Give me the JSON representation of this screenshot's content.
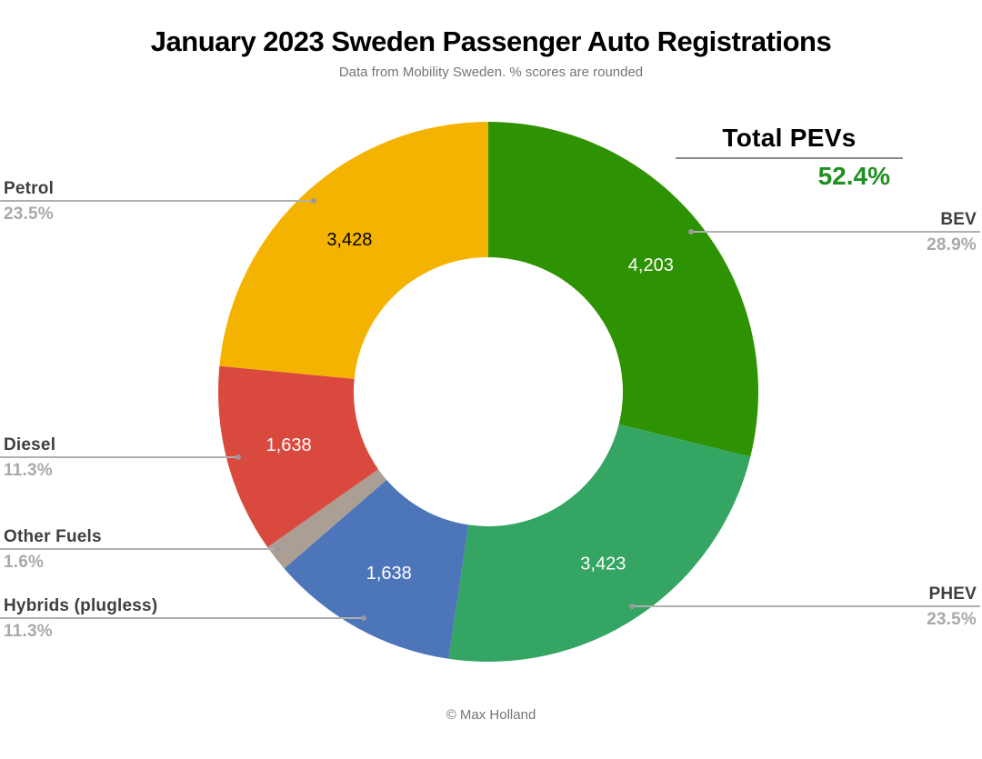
{
  "header": {
    "title": "January 2023 Sweden Passenger Auto Registrations",
    "subtitle": "Data from Mobility Sweden. % scores are rounded"
  },
  "footer": {
    "credit": "© Max Holland"
  },
  "colors": {
    "accent_green": "#1f8f1f",
    "label_dark": "#3f3f3f",
    "label_gray": "#a9a9a9",
    "leader_line": "#b0b0b0"
  },
  "chart_data": {
    "type": "pie",
    "donut": true,
    "title": "January 2023 Sweden Passenger Auto Registrations",
    "subtitle": "Data from Mobility Sweden. % scores are rounded",
    "credit": "© Max Holland",
    "start_angle": "12-oclock",
    "direction": "clockwise",
    "legend_position": "outside-callouts",
    "annotation": {
      "label": "Total PEVs",
      "value": "52.4%"
    },
    "segments": [
      {
        "id": "bev",
        "label": "BEV",
        "pct": 28.9,
        "pct_label": "28.9%",
        "count": 4203,
        "count_label": "4,203",
        "color": "#2e9302",
        "value_color": "#ffffff",
        "label_side": "right"
      },
      {
        "id": "phev",
        "label": "PHEV",
        "pct": 23.5,
        "pct_label": "23.5%",
        "count": 3423,
        "count_label": "3,423",
        "color": "#34a562",
        "value_color": "#ffffff",
        "label_side": "right"
      },
      {
        "id": "hybrids",
        "label": "Hybrids (plugless)",
        "pct": 11.3,
        "pct_label": "11.3%",
        "count": 1638,
        "count_label": "1,638",
        "color": "#4d75ba",
        "value_color": "#ffffff",
        "label_side": "left"
      },
      {
        "id": "other-fuels",
        "label": "Other Fuels",
        "pct": 1.6,
        "pct_label": "1.6%",
        "color": "#ab9e94",
        "label_side": "left"
      },
      {
        "id": "diesel",
        "label": "Diesel",
        "pct": 11.3,
        "pct_label": "11.3%",
        "count": 1638,
        "count_label": "1,638",
        "color": "#d9493e",
        "value_color": "#ffffff",
        "label_side": "left"
      },
      {
        "id": "petrol",
        "label": "Petrol",
        "pct": 23.5,
        "pct_label": "23.5%",
        "count": 3428,
        "count_label": "3,428",
        "color": "#f5b301",
        "value_color": "#000000",
        "label_side": "left"
      }
    ]
  }
}
